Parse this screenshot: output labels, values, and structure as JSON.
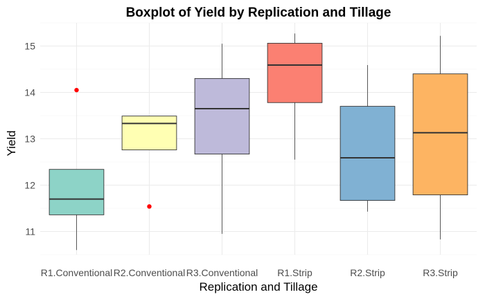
{
  "chart_data": {
    "type": "boxplot",
    "title": "Boxplot of Yield by Replication and Tillage",
    "xlabel": "Replication and Tillage",
    "ylabel": "Yield",
    "ylim": [
      10.5,
      15.5
    ],
    "yticks": [
      11,
      12,
      13,
      14,
      15
    ],
    "grid": true,
    "legend": "none",
    "categories": [
      "R1.Conventional",
      "R2.Conventional",
      "R3.Conventional",
      "R1.Strip",
      "R2.Strip",
      "R3.Strip"
    ],
    "boxes": [
      {
        "category": "R1.Conventional",
        "whisker_low": 10.6,
        "q1": 11.36,
        "median": 11.7,
        "q3": 12.34,
        "whisker_high": 12.34,
        "outliers": [
          14.05
        ],
        "color": "#8dd3c7"
      },
      {
        "category": "R2.Conventional",
        "whisker_low": 12.76,
        "q1": 12.76,
        "median": 13.33,
        "q3": 13.49,
        "whisker_high": 13.49,
        "outliers": [
          11.54
        ],
        "color": "#ffffb3"
      },
      {
        "category": "R3.Conventional",
        "whisker_low": 10.95,
        "q1": 12.67,
        "median": 13.65,
        "q3": 14.3,
        "whisker_high": 15.05,
        "outliers": [],
        "color": "#bebada"
      },
      {
        "category": "R1.Strip",
        "whisker_low": 12.55,
        "q1": 13.78,
        "median": 14.59,
        "q3": 15.06,
        "whisker_high": 15.27,
        "outliers": [],
        "color": "#fb8072"
      },
      {
        "category": "R2.Strip",
        "whisker_low": 11.43,
        "q1": 11.67,
        "median": 12.59,
        "q3": 13.7,
        "whisker_high": 14.59,
        "outliers": [],
        "color": "#80b1d3"
      },
      {
        "category": "R3.Strip",
        "whisker_low": 10.83,
        "q1": 11.79,
        "median": 13.13,
        "q3": 14.4,
        "whisker_high": 15.22,
        "outliers": [],
        "color": "#fdb462"
      }
    ],
    "outlier_color": "#ff0000"
  }
}
